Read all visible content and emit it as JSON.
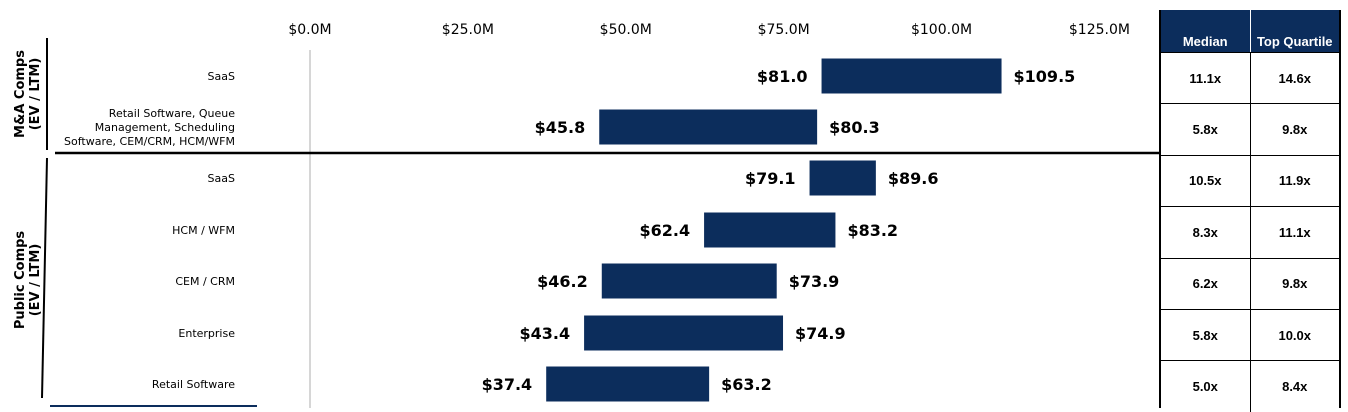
{
  "chart_data": {
    "type": "bar",
    "subtype": "floating-range",
    "x_ticks": [
      "$0.0M",
      "$25.0M",
      "$50.0M",
      "$75.0M",
      "$100.0M",
      "$125.0M"
    ],
    "xlim": [
      0,
      130
    ],
    "bar_color": "#0c2d5c",
    "groups": [
      {
        "label": "M&A Comps",
        "sublabel": "(EV / LTM)",
        "items": [
          {
            "category": "SaaS",
            "low": 81.0,
            "high": 109.5,
            "low_label": "$81.0",
            "high_label": "$109.5"
          },
          {
            "category": "Retail Software, Queue Management, Scheduling Software, CEM/CRM, HCM/WFM",
            "category_lines": [
              "Retail Software, Queue",
              "Management, Scheduling",
              "Software, CEM/CRM, HCM/WFM"
            ],
            "low": 45.8,
            "high": 80.3,
            "low_label": "$45.8",
            "high_label": "$80.3"
          }
        ]
      },
      {
        "label": "Public Comps",
        "sublabel": "(EV / LTM)",
        "items": [
          {
            "category": "SaaS",
            "low": 79.1,
            "high": 89.6,
            "low_label": "$79.1",
            "high_label": "$89.6"
          },
          {
            "category": "HCM / WFM",
            "low": 62.4,
            "high": 83.2,
            "low_label": "$62.4",
            "high_label": "$83.2"
          },
          {
            "category": "CEM / CRM",
            "low": 46.2,
            "high": 73.9,
            "low_label": "$46.2",
            "high_label": "$73.9"
          },
          {
            "category": "Enterprise",
            "low": 43.4,
            "high": 74.9,
            "low_label": "$43.4",
            "high_label": "$74.9"
          },
          {
            "category": "Retail Software",
            "low": 37.4,
            "high": 63.2,
            "low_label": "$37.4",
            "high_label": "$63.2"
          }
        ]
      }
    ]
  },
  "table": {
    "headers": [
      "Median",
      "Top Quartile"
    ],
    "rows": [
      [
        "11.1x",
        "14.6x"
      ],
      [
        "5.8x",
        "9.8x"
      ],
      [
        "10.5x",
        "11.9x"
      ],
      [
        "8.3x",
        "11.1x"
      ],
      [
        "6.2x",
        "9.8x"
      ],
      [
        "5.8x",
        "10.0x"
      ],
      [
        "5.0x",
        "8.4x"
      ]
    ]
  }
}
